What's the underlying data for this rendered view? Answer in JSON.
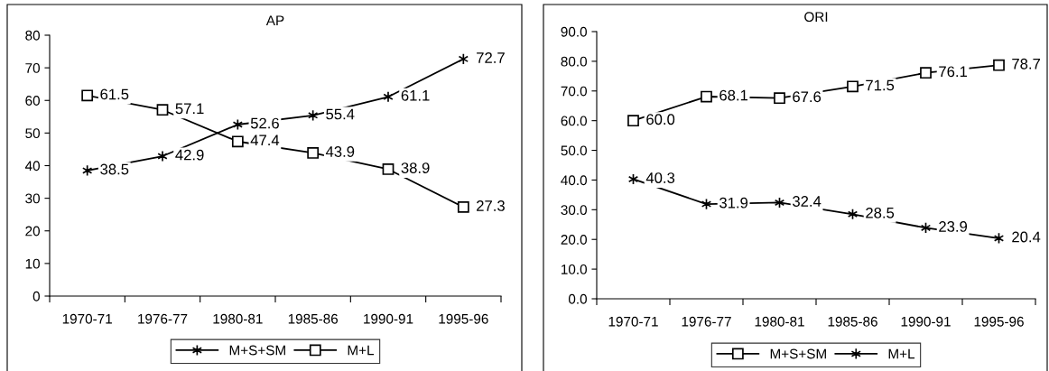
{
  "chart_data": [
    {
      "type": "line",
      "title": "AP",
      "categories": [
        "1970-71",
        "1976-77",
        "1980-81",
        "1985-86",
        "1990-91",
        "1995-96"
      ],
      "series": [
        {
          "name": "M+S+SM",
          "color": "#000000",
          "marker": "cross",
          "values": [
            38.5,
            42.9,
            52.6,
            55.4,
            61.1,
            72.7
          ],
          "value_labels": [
            "38.5",
            "42.9",
            "52.6",
            "55.4",
            "61.1",
            "72.7"
          ]
        },
        {
          "name": "M+L",
          "color": "#000000",
          "marker": "square",
          "values": [
            61.5,
            57.1,
            47.4,
            43.9,
            38.9,
            27.3
          ],
          "value_labels": [
            "61.5",
            "57.1",
            "47.4",
            "43.9",
            "38.9",
            "27.3"
          ]
        }
      ],
      "ylim": [
        0,
        80
      ],
      "yticks": [
        0,
        10,
        20,
        30,
        40,
        50,
        60,
        70,
        80
      ],
      "legend": "bottom",
      "line_style": "solid"
    },
    {
      "type": "line",
      "title": "ORI",
      "categories": [
        "1970-71",
        "1976-77",
        "1980-81",
        "1985-86",
        "1990-91",
        "1995-96"
      ],
      "series": [
        {
          "name": "M+S+SM",
          "color": "#000000",
          "marker": "square",
          "values": [
            60.0,
            68.1,
            67.6,
            71.5,
            76.1,
            78.7
          ],
          "value_labels": [
            "60.0",
            "68.1",
            "67.6",
            "71.5",
            "76.1",
            "78.7"
          ]
        },
        {
          "name": "M+L",
          "color": "#000000",
          "marker": "cross",
          "values": [
            40.3,
            31.9,
            32.4,
            28.5,
            23.9,
            20.4
          ],
          "value_labels": [
            "40.3",
            "31.9",
            "32.4",
            "28.5",
            "23.9",
            "20.4"
          ]
        }
      ],
      "ylim": [
        0,
        90
      ],
      "yticks": [
        {
          "value": 0,
          "label": "0.0"
        },
        {
          "value": 10,
          "label": "10.0"
        },
        {
          "value": 20,
          "label": "20.0"
        },
        {
          "value": 30,
          "label": "30.0"
        },
        {
          "value": 40,
          "label": "40.0"
        },
        {
          "value": 50,
          "label": "50.0"
        },
        {
          "value": 60,
          "label": "60.0"
        },
        {
          "value": 70,
          "label": "70.0"
        },
        {
          "value": 80,
          "label": "80.0"
        },
        {
          "value": 90,
          "label": "90.0"
        }
      ],
      "legend": "bottom",
      "line_style": "solid"
    }
  ]
}
